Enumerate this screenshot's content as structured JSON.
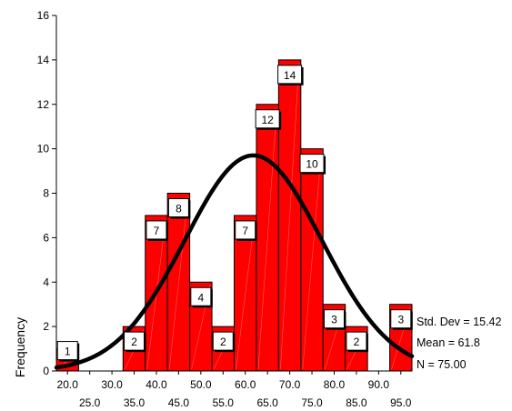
{
  "chart_data": {
    "type": "bar",
    "subtype": "histogram",
    "ylabel": "Frequency",
    "ylim": [
      0,
      16
    ],
    "yticks": [
      0,
      2,
      4,
      6,
      8,
      10,
      12,
      14,
      16
    ],
    "bin_centers": [
      20,
      25,
      30,
      35,
      40,
      45,
      50,
      55,
      60,
      65,
      70,
      75,
      80,
      85,
      90,
      95
    ],
    "values": [
      1,
      0,
      0,
      2,
      7,
      8,
      4,
      2,
      7,
      12,
      14,
      10,
      3,
      2,
      0,
      3
    ],
    "data_labels": [
      "1",
      "",
      "",
      "2",
      "7",
      "8",
      "4",
      "2",
      "7",
      "12",
      "14",
      "10",
      "3",
      "2",
      "",
      "3"
    ],
    "xtick_labels_row1": [
      "20.0",
      "30.0",
      "40.0",
      "50.0",
      "60.0",
      "70.0",
      "80.0",
      "90.0"
    ],
    "xtick_labels_row2": [
      "25.0",
      "35.0",
      "45.0",
      "55.0",
      "65.0",
      "75.0",
      "85.0",
      "95.0"
    ],
    "normal_curve": {
      "mean": 61.8,
      "std_dev": 15.42,
      "n": 75
    },
    "stats": {
      "std_dev_label": "Std. Dev = 15.42",
      "mean_label": "Mean = 61.8",
      "n_label": "N = 75.00"
    },
    "grid": false,
    "colors": {
      "bar_fill": "#ff0000",
      "bar_stroke": "#000000",
      "curve": "#000000",
      "label_box": "#ffffff"
    }
  }
}
